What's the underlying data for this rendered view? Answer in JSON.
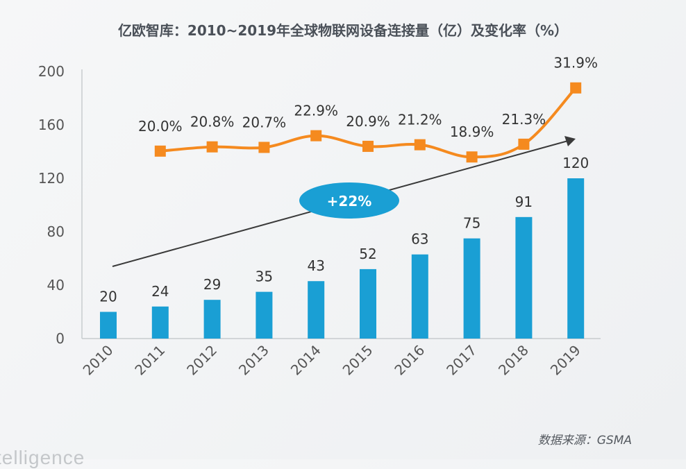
{
  "chart_data": {
    "type": "bar+line",
    "title": "亿欧智库：2010~2019年全球物联网设备连接量（亿）及变化率（%）",
    "source": "数据来源：GSMA",
    "watermark": "telligence",
    "categories": [
      "2010",
      "2011",
      "2012",
      "2013",
      "2014",
      "2015",
      "2016",
      "2017",
      "2018",
      "2019"
    ],
    "series": [
      {
        "type": "bar",
        "axis": "primary",
        "values": [
          20,
          24,
          29,
          35,
          43,
          52,
          63,
          75,
          91,
          120
        ],
        "labels": [
          "20",
          "24",
          "29",
          "35",
          "43",
          "52",
          "63",
          "75",
          "91",
          "120"
        ]
      },
      {
        "type": "line",
        "axis": "secondary",
        "values": [
          null,
          20.0,
          20.8,
          20.7,
          22.9,
          20.9,
          21.2,
          18.9,
          21.3,
          31.9
        ],
        "labels": [
          "",
          "20.0%",
          "20.8%",
          "20.7%",
          "22.9%",
          "20.9%",
          "21.2%",
          "18.9%",
          "21.3%",
          "31.9%"
        ]
      }
    ],
    "ylim": [
      0,
      200
    ],
    "yticks": [
      "0",
      "40",
      "80",
      "120",
      "160",
      "200"
    ],
    "y2lim": [
      -15.3,
      35
    ],
    "y2_axis_visible": false,
    "grid": false,
    "annotation": {
      "text": "+22%",
      "type": "trend-arrow"
    },
    "colors": {
      "bar": "#1a9fd4",
      "line": "#f58a1f",
      "annotation_bg": "#1a9fd4",
      "arrow": "#3a3a3a"
    }
  }
}
